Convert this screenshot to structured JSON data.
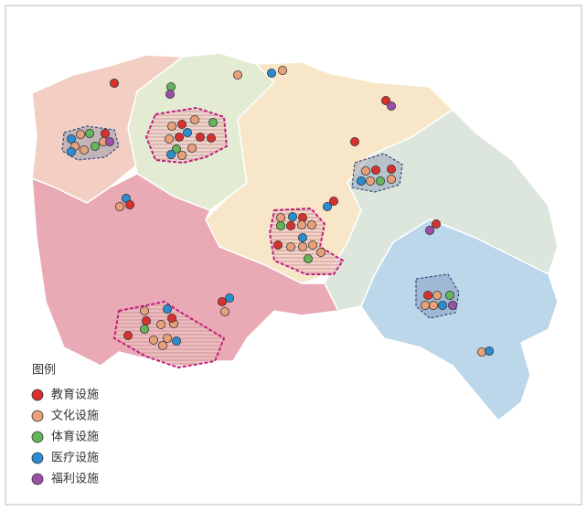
{
  "legend": {
    "title": "图例",
    "items": [
      {
        "label": "教育设施",
        "color": "#d7312e"
      },
      {
        "label": "文化设施",
        "color": "#e8a07a"
      },
      {
        "label": "体育设施",
        "color": "#63b45a"
      },
      {
        "label": "医疗设施",
        "color": "#2a8dd0"
      },
      {
        "label": "福利设施",
        "color": "#9a4fa8"
      }
    ]
  }
}
